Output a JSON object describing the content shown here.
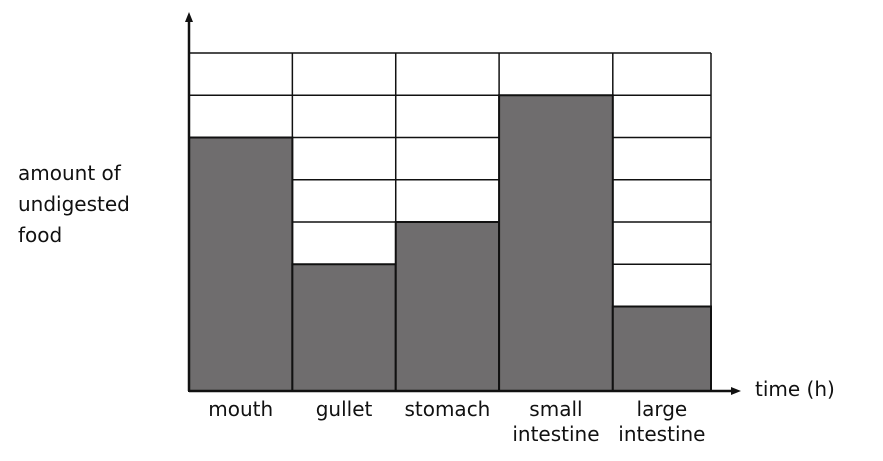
{
  "chart_data": {
    "type": "bar",
    "categories": [
      "mouth",
      "gullet",
      "stomach",
      "small\nintestine",
      "large\nintestine"
    ],
    "values": [
      6,
      3,
      4,
      7,
      2
    ],
    "ylabel": "amount of\nundigested\nfood",
    "xlabel": "time (h)",
    "ylim": [
      0,
      8
    ],
    "grid": true,
    "bar_widths": [
      1,
      1,
      1,
      1.1,
      0.95
    ],
    "colors": {
      "bar": "#6f6d6e",
      "grid": "#111111",
      "background": "#ffffff"
    }
  }
}
